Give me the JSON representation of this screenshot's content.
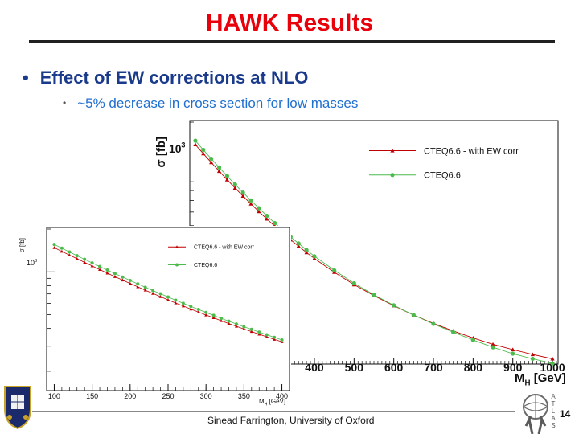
{
  "slide": {
    "title": "HAWK Results",
    "bullet_main": "Effect of EW corrections at NLO",
    "bullet_sub": "~5% decrease in cross section for low masses",
    "bullet_glyph": "•",
    "footer": "Sinead Farrington, University of Oxford",
    "page_number": "14",
    "logo_letters": "ATLAS"
  },
  "colors": {
    "title": "#e8000b",
    "bullet_main": "#1a3a8c",
    "bullet_sub": "#1f6fd0",
    "series_ew": "#c00000",
    "series_nlo": "#4cbb4c"
  },
  "chart_data": [
    {
      "type": "line",
      "ylabel": "σ [fb]",
      "xlabel": "M",
      "xlabel_sub": "H",
      "xlabel_unit": " [GeV]",
      "x_tick_labels": [
        "400",
        "500",
        "600",
        "700",
        "800",
        "900",
        "1000"
      ],
      "y_tick_labels": [
        "10",
        "3"
      ],
      "xlim": [
        90,
        1010
      ],
      "y_log": true,
      "ylim": [
        80,
        2000
      ],
      "legend_position": "top-right",
      "x": [
        100,
        120,
        140,
        160,
        180,
        200,
        220,
        240,
        260,
        280,
        300,
        320,
        340,
        360,
        380,
        400,
        450,
        500,
        550,
        600,
        650,
        700,
        750,
        800,
        850,
        900,
        950,
        1000
      ],
      "series": [
        {
          "name": "CTEQ6.6 - with EW corr",
          "marker": "triangle",
          "values": [
            1480,
            1312,
            1165,
            1037,
            925,
            828,
            743,
            669,
            604,
            547,
            497,
            453,
            414,
            380,
            349,
            322,
            268,
            227,
            196,
            171,
            151,
            135,
            122,
            111,
            102,
            95,
            89,
            84
          ]
        },
        {
          "name": "CTEQ6.6",
          "marker": "circle",
          "values": [
            1560,
            1380,
            1225,
            1090,
            972,
            869,
            779,
            701,
            632,
            571,
            518,
            471,
            430,
            394,
            361,
            332,
            275,
            231,
            198,
            172,
            151,
            134,
            120,
            108,
            98,
            90,
            84,
            79
          ]
        }
      ]
    },
    {
      "type": "line",
      "ylabel": "σ [fb]",
      "xlabel": "M",
      "xlabel_sub": "H",
      "xlabel_unit": " [GeV]",
      "x_tick_labels": [
        "100",
        "150",
        "200",
        "250",
        "300",
        "350",
        "400"
      ],
      "y_tick_labels": [
        "10",
        "3"
      ],
      "xlim": [
        90,
        410
      ],
      "y_log": true,
      "ylim": [
        150,
        2000
      ],
      "legend_position": "top-right",
      "x": [
        100,
        110,
        120,
        130,
        140,
        150,
        160,
        170,
        180,
        190,
        200,
        210,
        220,
        230,
        240,
        250,
        260,
        270,
        280,
        290,
        300,
        310,
        320,
        330,
        340,
        350,
        360,
        370,
        380,
        390,
        400
      ],
      "series": [
        {
          "name": "CTEQ6.6 - with EW corr",
          "marker": "triangle",
          "values": [
            1480,
            1393,
            1312,
            1237,
            1165,
            1100,
            1037,
            979,
            925,
            875,
            828,
            784,
            743,
            705,
            669,
            635,
            604,
            575,
            547,
            521,
            497,
            475,
            453,
            433,
            414,
            396,
            380,
            364,
            349,
            335,
            322
          ]
        },
        {
          "name": "CTEQ6.6",
          "marker": "circle",
          "values": [
            1560,
            1467,
            1380,
            1300,
            1225,
            1155,
            1090,
            1029,
            972,
            919,
            869,
            822,
            779,
            739,
            701,
            666,
            632,
            601,
            571,
            544,
            518,
            494,
            471,
            450,
            430,
            411,
            394,
            377,
            361,
            346,
            332
          ]
        }
      ]
    }
  ]
}
